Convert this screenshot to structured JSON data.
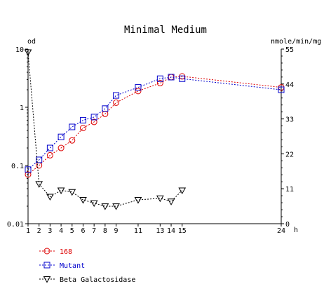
{
  "chart_data": {
    "type": "line",
    "title": "Minimal Medium",
    "xlabel": "h",
    "ylabel_left": "od",
    "ylabel_right": "nmole/min/mg",
    "x_ticks": [
      1,
      2,
      3,
      4,
      5,
      6,
      7,
      8,
      9,
      11,
      13,
      14,
      15,
      24
    ],
    "x_range": [
      1,
      24
    ],
    "left_axis": {
      "scale": "log",
      "range": [
        0.01,
        10
      ],
      "ticks": [
        "10",
        "1",
        "0.1",
        "0.01"
      ],
      "tick_values": [
        10,
        1,
        0.1,
        0.01
      ]
    },
    "right_axis": {
      "scale": "linear",
      "range": [
        0,
        55
      ],
      "ticks": [
        "55",
        "44",
        "33",
        "22",
        "11",
        "0"
      ],
      "tick_values": [
        55,
        44,
        33,
        22,
        11,
        0
      ]
    },
    "grid": false,
    "legend_position": "bottom-left",
    "series": [
      {
        "name": "168",
        "axis": "left",
        "marker": "circle",
        "color": "#dd0000",
        "points": [
          {
            "x": 1,
            "y": 0.07
          },
          {
            "x": 2,
            "y": 0.1
          },
          {
            "x": 3,
            "y": 0.15
          },
          {
            "x": 4,
            "y": 0.2
          },
          {
            "x": 5,
            "y": 0.27
          },
          {
            "x": 6,
            "y": 0.44
          },
          {
            "x": 7,
            "y": 0.56
          },
          {
            "x": 8,
            "y": 0.77
          },
          {
            "x": 9,
            "y": 1.2
          },
          {
            "x": 11,
            "y": 1.9
          },
          {
            "x": 13,
            "y": 2.6
          },
          {
            "x": 14,
            "y": 3.3
          },
          {
            "x": 15,
            "y": 3.4
          },
          {
            "x": 24,
            "y": 2.2
          }
        ]
      },
      {
        "name": "Mutant",
        "axis": "left",
        "marker": "square",
        "color": "#0000cc",
        "points": [
          {
            "x": 1,
            "y": 0.085
          },
          {
            "x": 2,
            "y": 0.125
          },
          {
            "x": 3,
            "y": 0.2
          },
          {
            "x": 4,
            "y": 0.31
          },
          {
            "x": 5,
            "y": 0.46
          },
          {
            "x": 6,
            "y": 0.6
          },
          {
            "x": 7,
            "y": 0.68
          },
          {
            "x": 8,
            "y": 0.95
          },
          {
            "x": 9,
            "y": 1.6
          },
          {
            "x": 11,
            "y": 2.2
          },
          {
            "x": 13,
            "y": 3.1
          },
          {
            "x": 14,
            "y": 3.3
          },
          {
            "x": 15,
            "y": 3.1
          },
          {
            "x": 24,
            "y": 2.0
          }
        ]
      },
      {
        "name": "Beta Galactosidase",
        "axis": "right",
        "marker": "triangle-down",
        "color": "#000000",
        "points": [
          {
            "x": 1,
            "y": 54
          },
          {
            "x": 2,
            "y": 12.5
          },
          {
            "x": 3,
            "y": 8.5
          },
          {
            "x": 4,
            "y": 10.5
          },
          {
            "x": 5,
            "y": 10
          },
          {
            "x": 6,
            "y": 7.5
          },
          {
            "x": 7,
            "y": 6.5
          },
          {
            "x": 8,
            "y": 5.5
          },
          {
            "x": 9,
            "y": 5.5
          },
          {
            "x": 11,
            "y": 7.5
          },
          {
            "x": 13,
            "y": 8
          },
          {
            "x": 14,
            "y": 7
          },
          {
            "x": 15,
            "y": 10.5
          }
        ]
      }
    ]
  }
}
